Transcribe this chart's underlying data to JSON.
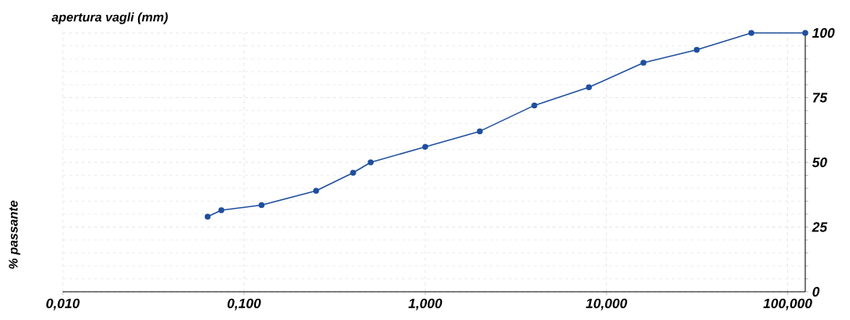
{
  "chart_data": {
    "type": "line",
    "xlabel": "apertura vagli (mm)",
    "ylabel": "% passante",
    "x": [
      0.063,
      0.075,
      0.125,
      0.25,
      0.4,
      0.5,
      1,
      2,
      4,
      8,
      16,
      31.5,
      63,
      125
    ],
    "values": [
      29,
      31.5,
      33.5,
      39,
      46,
      50,
      56,
      62,
      72,
      79,
      88.5,
      93.5,
      100,
      100
    ],
    "color": "#1f4f9e",
    "marker": "circle",
    "line_style": "solid",
    "log": "x",
    "grid": true,
    "xlim": [
      0.01,
      125
    ],
    "xticks": [
      {
        "value": 0.01,
        "label": "0,010"
      },
      {
        "value": 0.1,
        "label": "0,100"
      },
      {
        "value": 1,
        "label": "1,000"
      },
      {
        "value": 10,
        "label": "10,000"
      },
      {
        "value": 100,
        "label": "100,000"
      }
    ],
    "ylim": [
      0,
      100
    ],
    "yticks": [
      0,
      25,
      50,
      75,
      100
    ]
  }
}
